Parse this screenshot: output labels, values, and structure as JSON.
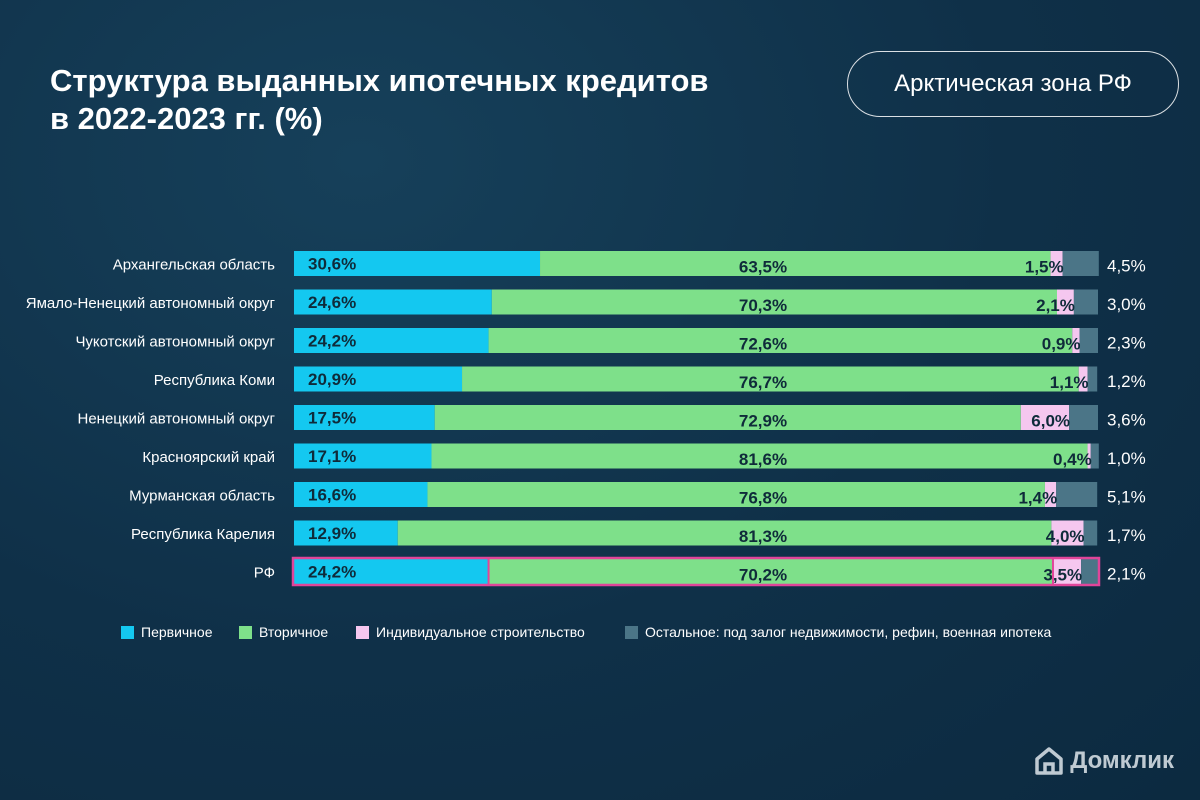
{
  "title_line1": "Структура выданных ипотечных кредитов",
  "title_line2": "в 2022-2023 гг. (%)",
  "badge": "Арктическая зона РФ",
  "brand": "Домклик",
  "colors": {
    "primary": "#14c8f0",
    "secondary": "#7ee08a",
    "individual": "#f5c7ef",
    "other": "#4b7587",
    "highlight_border": "#e0459a"
  },
  "chart_data": {
    "type": "bar",
    "orientation": "horizontal",
    "stacked": true,
    "xlim": [
      0,
      100
    ],
    "categories": [
      "Архангельская область",
      "Ямало-Ненецкий автономный округ",
      "Чукотский автономный округ",
      "Республика Коми",
      "Ненецкий автономный округ",
      "Красноярский край",
      "Мурманская область",
      "Республика Карелия",
      "РФ"
    ],
    "series": [
      {
        "name": "Первичное",
        "color": "#14c8f0",
        "values": [
          30.6,
          24.6,
          24.2,
          20.9,
          17.5,
          17.1,
          16.6,
          12.9,
          24.2
        ],
        "labels": [
          "30,6%",
          "24,6%",
          "24,2%",
          "20,9%",
          "17,5%",
          "17,1%",
          "16,6%",
          "12,9%",
          "24,2%"
        ]
      },
      {
        "name": "Вторичное",
        "color": "#7ee08a",
        "values": [
          63.5,
          70.3,
          72.6,
          76.7,
          72.9,
          81.6,
          76.8,
          81.3,
          70.2
        ],
        "labels": [
          "63,5%",
          "70,3%",
          "72,6%",
          "76,7%",
          "72,9%",
          "81,6%",
          "76,8%",
          "81,3%",
          "70,2%"
        ]
      },
      {
        "name": "Индивидуальное строительство",
        "color": "#f5c7ef",
        "values": [
          1.5,
          2.1,
          0.9,
          1.1,
          6.0,
          0.4,
          1.4,
          4.0,
          3.5
        ],
        "labels": [
          "1,5%",
          "2,1%",
          "0,9%",
          "1,1%",
          "6,0%",
          "0,4%",
          "1,4%",
          "4,0%",
          "3,5%"
        ]
      },
      {
        "name": "Остальное: под залог недвижимости, рефин, военная ипотека",
        "color": "#4b7587",
        "values": [
          4.5,
          3.0,
          2.3,
          1.2,
          3.6,
          1.0,
          5.1,
          1.7,
          2.1
        ],
        "labels": [
          "4,5%",
          "3,0%",
          "2,3%",
          "1,2%",
          "3,6%",
          "1,0%",
          "5,1%",
          "1,7%",
          "2,1%"
        ]
      }
    ],
    "highlighted_category": "РФ",
    "legend_position": "bottom",
    "grid": false
  }
}
